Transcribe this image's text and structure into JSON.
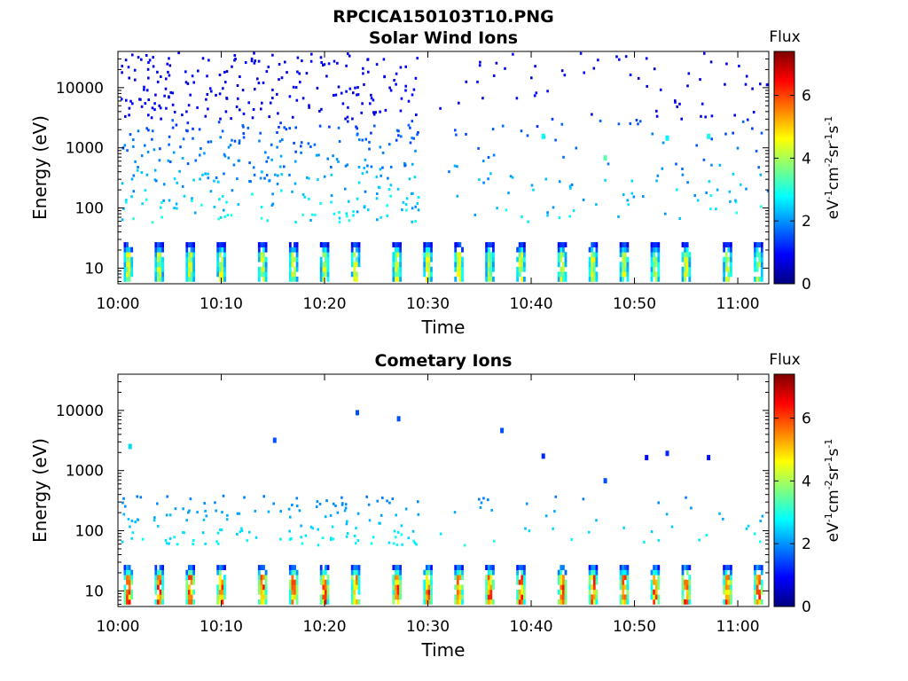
{
  "figure": {
    "title": "RPCICA150103T10.PNG"
  },
  "colormap": {
    "name": "jet",
    "stops": [
      "#00007f",
      "#0000ff",
      "#007fff",
      "#00ffff",
      "#7fff7f",
      "#ffff00",
      "#ff7f00",
      "#ff0000",
      "#7f0000"
    ]
  },
  "chart_data": [
    {
      "type": "heatmap",
      "title": "Solar Wind Ions",
      "xlabel": "Time",
      "ylabel": "Energy (eV)",
      "y_scale": "log",
      "x_range": [
        "10:00",
        "11:03"
      ],
      "ylim": [
        5.5,
        40000
      ],
      "x_ticks": [
        "10:00",
        "10:10",
        "10:20",
        "10:30",
        "10:40",
        "10:50",
        "11:00"
      ],
      "y_ticks": [
        "10",
        "100",
        "1000",
        "10000"
      ],
      "colorbar": {
        "title": "Flux",
        "label": "eV⁻¹cm⁻²sr⁻¹s⁻¹",
        "range": [
          0,
          7.4
        ],
        "ticks": [
          "0",
          "2",
          "4",
          "6"
        ]
      },
      "low_energy_bursts": {
        "energy_range": [
          6,
          27
        ],
        "times": [
          "10:01",
          "10:04",
          "10:07",
          "10:10",
          "10:14",
          "10:17",
          "10:20",
          "10:23",
          "10:27",
          "10:30",
          "10:33",
          "10:36",
          "10:39",
          "10:43",
          "10:46",
          "10:49",
          "10:52",
          "10:55",
          "10:59",
          "11:02"
        ],
        "peak_flux": 5.2
      },
      "sparse_counts": {
        "energy_range": [
          60,
          40000
        ],
        "flux": [
          0.6,
          3.0
        ],
        "density": "high before 10:30, lower after"
      },
      "notable_points": [
        {
          "time": "10:41",
          "energy": 1600,
          "flux": 2.8
        },
        {
          "time": "10:47",
          "energy": 700,
          "flux": 3.4
        },
        {
          "time": "10:53",
          "energy": 1500,
          "flux": 2.7
        },
        {
          "time": "10:57",
          "energy": 1600,
          "flux": 2.9
        }
      ]
    },
    {
      "type": "heatmap",
      "title": "Cometary Ions",
      "xlabel": "Time",
      "ylabel": "Energy (eV)",
      "y_scale": "log",
      "x_range": [
        "10:00",
        "11:03"
      ],
      "ylim": [
        5.5,
        40000
      ],
      "x_ticks": [
        "10:00",
        "10:10",
        "10:20",
        "10:30",
        "10:40",
        "10:50",
        "11:00"
      ],
      "y_ticks": [
        "10",
        "100",
        "1000",
        "10000"
      ],
      "colorbar": {
        "title": "Flux",
        "label": "eV⁻¹cm⁻²sr⁻¹s⁻¹",
        "range": [
          0,
          7.4
        ],
        "ticks": [
          "0",
          "2",
          "4",
          "6"
        ]
      },
      "low_energy_bursts": {
        "energy_range": [
          6,
          27
        ],
        "times": [
          "10:01",
          "10:04",
          "10:07",
          "10:10",
          "10:14",
          "10:17",
          "10:20",
          "10:23",
          "10:27",
          "10:30",
          "10:33",
          "10:36",
          "10:39",
          "10:43",
          "10:46",
          "10:49",
          "10:52",
          "10:55",
          "10:59",
          "11:02"
        ],
        "peak_flux": 7.0
      },
      "sparse_counts": {
        "energy_range": [
          60,
          400
        ],
        "flux": [
          1.8,
          3.0
        ],
        "density": "moderate before 10:30, sparse after"
      },
      "notable_points": [
        {
          "time": "10:01",
          "energy": 2600,
          "flux": 2.5
        },
        {
          "time": "10:15",
          "energy": 3300,
          "flux": 1.5
        },
        {
          "time": "10:23",
          "energy": 9500,
          "flux": 1.5
        },
        {
          "time": "10:27",
          "energy": 7500,
          "flux": 1.5
        },
        {
          "time": "10:37",
          "energy": 4800,
          "flux": 1.5
        },
        {
          "time": "10:41",
          "energy": 1800,
          "flux": 1.2
        },
        {
          "time": "10:47",
          "energy": 700,
          "flux": 1.5
        },
        {
          "time": "10:51",
          "energy": 1700,
          "flux": 1.0
        },
        {
          "time": "10:53",
          "energy": 2000,
          "flux": 1.2
        },
        {
          "time": "10:57",
          "energy": 1700,
          "flux": 1.0
        }
      ]
    }
  ]
}
